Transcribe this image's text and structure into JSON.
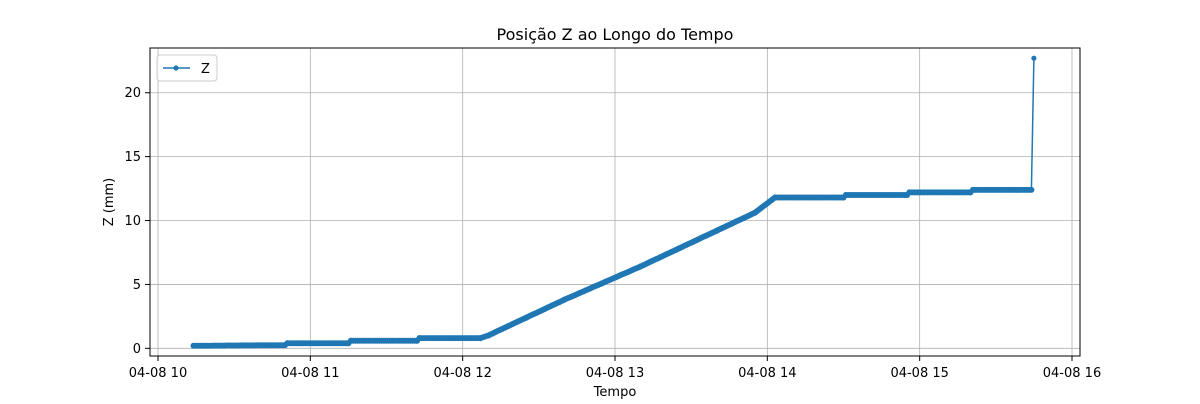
{
  "chart_data": {
    "type": "line",
    "title": "Posição Z ao Longo do Tempo",
    "xlabel": "Tempo",
    "ylabel": "Z (mm)",
    "xlim": [
      "04-08 10:00",
      "04-08 16:00"
    ],
    "ylim": [
      -0.6,
      23.5
    ],
    "grid": true,
    "legend_position": "upper-left",
    "x_ticks": [
      "04-08 10:00",
      "04-08 11:00",
      "04-08 12:00",
      "04-08 13:00",
      "04-08 14:00",
      "04-08 15:00",
      "04-08 16:00"
    ],
    "x_tick_labels": [
      "04-08 10",
      "04-08 11",
      "04-08 12",
      "04-08 13",
      "04-08 14",
      "04-08 15",
      "04-08 16"
    ],
    "y_ticks": [
      0,
      5,
      10,
      15,
      20
    ],
    "y_tick_labels": [
      "0",
      "5",
      "10",
      "15",
      "20"
    ],
    "series": [
      {
        "name": "Z",
        "color": "#1f77b4",
        "marker": "circle",
        "x": [
          "04-08 10:14",
          "04-08 10:50",
          "04-08 10:51",
          "04-08 11:15",
          "04-08 11:16",
          "04-08 11:42",
          "04-08 11:43",
          "04-08 12:07",
          "04-08 12:10",
          "04-08 12:25",
          "04-08 12:40",
          "04-08 12:55",
          "04-08 13:10",
          "04-08 13:25",
          "04-08 13:40",
          "04-08 13:55",
          "04-08 14:03",
          "04-08 14:30",
          "04-08 14:31",
          "04-08 14:55",
          "04-08 14:56",
          "04-08 15:20",
          "04-08 15:21",
          "04-08 15:44",
          "04-08 15:45"
        ],
        "y": [
          0.2,
          0.25,
          0.4,
          0.4,
          0.6,
          0.6,
          0.8,
          0.8,
          1.0,
          2.4,
          3.8,
          5.1,
          6.4,
          7.8,
          9.2,
          10.6,
          11.8,
          11.8,
          12.0,
          12.0,
          12.2,
          12.2,
          12.4,
          12.4,
          22.7
        ]
      }
    ]
  }
}
